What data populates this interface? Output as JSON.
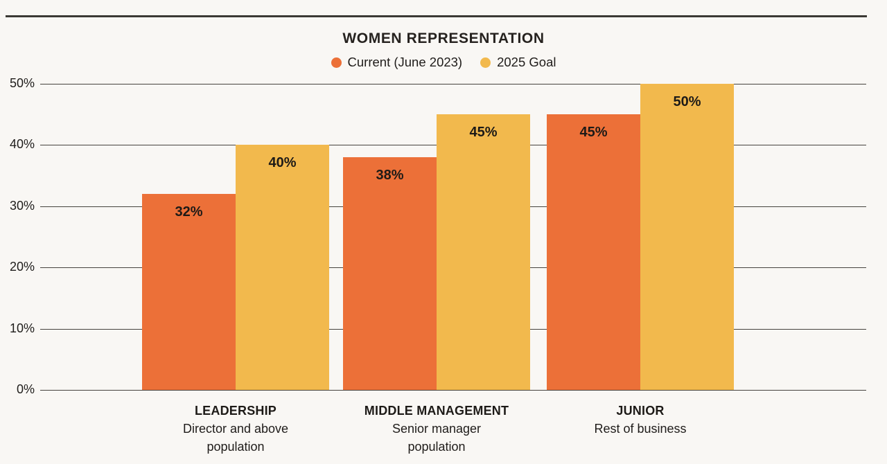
{
  "page": {
    "background_color": "#F9F7F4",
    "top_rule_color": "#3B3934",
    "gridline_color": "#45423D"
  },
  "chart_data": {
    "type": "bar",
    "title": "WOMEN REPRESENTATION",
    "legend_position": "top",
    "grid": true,
    "ylim": [
      0,
      50
    ],
    "yticks": [
      0,
      10,
      20,
      30,
      40,
      50
    ],
    "ytick_labels": [
      "0%",
      "10%",
      "20%",
      "30%",
      "40%",
      "50%"
    ],
    "legend": [
      {
        "name": "Current (June 2023)",
        "color": "#EC7038"
      },
      {
        "name": "2025 Goal",
        "color": "#F2B94D"
      }
    ],
    "categories": [
      {
        "label": "LEADERSHIP",
        "sublabel_lines": [
          "Director and above",
          "population"
        ]
      },
      {
        "label": "MIDDLE MANAGEMENT",
        "sublabel_lines": [
          "Senior manager",
          "population"
        ]
      },
      {
        "label": "JUNIOR",
        "sublabel_lines": [
          "Rest of business"
        ]
      }
    ],
    "series": [
      {
        "name": "Current (June 2023)",
        "color": "#EC7038",
        "values": [
          32,
          38,
          45
        ],
        "labels": [
          "32%",
          "38%",
          "45%"
        ]
      },
      {
        "name": "2025 Goal",
        "color": "#F2B94D",
        "values": [
          40,
          45,
          50
        ],
        "labels": [
          "40%",
          "45%",
          "50%"
        ]
      }
    ]
  }
}
